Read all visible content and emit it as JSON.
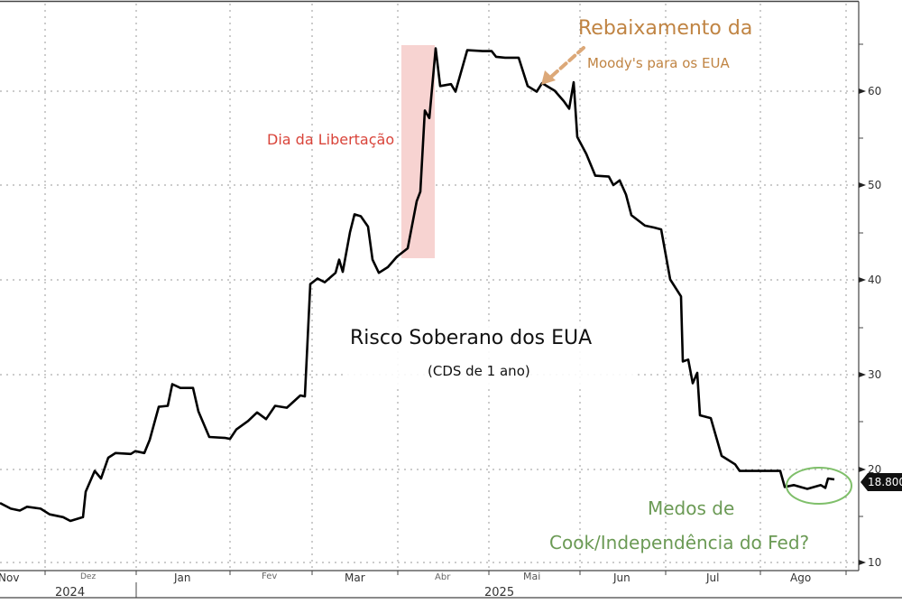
{
  "chart_data": {
    "type": "line",
    "title": "Risco Soberano dos EUA",
    "subtitle": "(CDS de 1 ano)",
    "xlabel": "",
    "ylabel": "",
    "ylim": [
      10,
      66
    ],
    "y_ticks": [
      10,
      20,
      30,
      40,
      50,
      60
    ],
    "grid": true,
    "legend": null,
    "x_month_labels": [
      "Nov",
      "Dez",
      "Jan",
      "Fev",
      "Mar",
      "Abr",
      "Mai",
      "Jun",
      "Jul",
      "Ago"
    ],
    "x_year_labels": [
      "2024",
      "2025"
    ],
    "last_value_label": "18.800",
    "series": [
      {
        "name": "Risco Soberano dos EUA (CDS de 1 ano)",
        "color": "#000000",
        "points": [
          [
            0,
            16.3
          ],
          [
            12,
            15.7
          ],
          [
            22,
            15.5
          ],
          [
            30,
            15.9
          ],
          [
            45,
            15.7
          ],
          [
            55,
            15.1
          ],
          [
            70,
            14.8
          ],
          [
            78,
            14.4
          ],
          [
            92,
            14.8
          ],
          [
            95,
            17.5
          ],
          [
            105,
            19.7
          ],
          [
            112,
            18.9
          ],
          [
            120,
            21.1
          ],
          [
            128,
            21.6
          ],
          [
            145,
            21.5
          ],
          [
            150,
            21.8
          ],
          [
            160,
            21.6
          ],
          [
            166,
            23.0
          ],
          [
            176,
            26.5
          ],
          [
            186,
            26.6
          ],
          [
            191,
            28.9
          ],
          [
            200,
            28.5
          ],
          [
            214,
            28.5
          ],
          [
            220,
            26.0
          ],
          [
            232,
            23.3
          ],
          [
            250,
            23.2
          ],
          [
            255,
            23.1
          ],
          [
            262,
            24.1
          ],
          [
            275,
            25.0
          ],
          [
            285,
            25.9
          ],
          [
            295,
            25.2
          ],
          [
            305,
            26.6
          ],
          [
            318,
            26.4
          ],
          [
            333,
            27.7
          ],
          [
            338,
            27.6
          ],
          [
            344,
            39.5
          ],
          [
            352,
            40.1
          ],
          [
            360,
            39.7
          ],
          [
            372,
            40.7
          ],
          [
            376,
            42.1
          ],
          [
            380,
            40.8
          ],
          [
            388,
            45.0
          ],
          [
            393,
            46.9
          ],
          [
            400,
            46.7
          ],
          [
            408,
            45.6
          ],
          [
            413,
            42.1
          ],
          [
            420,
            40.7
          ],
          [
            430,
            41.3
          ],
          [
            440,
            42.4
          ],
          [
            452,
            43.3
          ],
          [
            462,
            48.3
          ],
          [
            466,
            49.3
          ],
          [
            471,
            57.9
          ],
          [
            476,
            57.1
          ],
          [
            483,
            64.5
          ],
          [
            488,
            60.5
          ],
          [
            500,
            60.7
          ],
          [
            505,
            59.9
          ],
          [
            518,
            64.3
          ],
          [
            535,
            64.2
          ],
          [
            545,
            64.2
          ],
          [
            550,
            63.6
          ],
          [
            560,
            63.5
          ],
          [
            575,
            63.5
          ],
          [
            585,
            60.5
          ],
          [
            595,
            59.9
          ],
          [
            601,
            60.8
          ],
          [
            615,
            60.0
          ],
          [
            625,
            58.9
          ],
          [
            631,
            58.1
          ],
          [
            636,
            60.9
          ],
          [
            640,
            55.1
          ],
          [
            650,
            53.3
          ],
          [
            660,
            51.0
          ],
          [
            675,
            50.9
          ],
          [
            680,
            50.0
          ],
          [
            687,
            50.5
          ],
          [
            694,
            49.0
          ],
          [
            700,
            46.8
          ],
          [
            715,
            45.7
          ],
          [
            725,
            45.5
          ],
          [
            733,
            45.3
          ],
          [
            743,
            40.0
          ],
          [
            755,
            38.2
          ],
          [
            757,
            31.3
          ],
          [
            763,
            31.5
          ],
          [
            768,
            29.0
          ],
          [
            773,
            30.1
          ],
          [
            776,
            25.6
          ],
          [
            788,
            25.3
          ],
          [
            800,
            21.3
          ],
          [
            815,
            20.4
          ],
          [
            820,
            19.7
          ],
          [
            865,
            19.7
          ],
          [
            870,
            18.0
          ],
          [
            880,
            18.2
          ],
          [
            895,
            17.8
          ],
          [
            910,
            18.2
          ],
          [
            915,
            17.9
          ],
          [
            918,
            18.9
          ],
          [
            925,
            18.8
          ]
        ]
      }
    ],
    "annotations": [
      {
        "text": "Dia da Libertação",
        "color": "#d9443a",
        "highlight_period": "início de Abr 2025 (faixa rosa)"
      },
      {
        "text": "Rebaixamento da Moody's para os EUA",
        "color": "#c08443",
        "points_to": "meados de Mai 2025"
      },
      {
        "text": "Medos de Cook/Independência do Fed?",
        "color": "#6b9a55",
        "circled_region": "final de Ago 2025"
      }
    ]
  },
  "labels": {
    "title": "Risco Soberano dos EUA",
    "subtitle": "(CDS de 1 ano)",
    "liberation": "Dia da Libertação",
    "moodys_line1": "Rebaixamento da",
    "moodys_line2": "Moody's para os EUA",
    "fed_line1": "Medos de",
    "fed_line2": "Cook/Independência do Fed?",
    "last_value": "18.800",
    "months": [
      "Nov",
      "Dez",
      "Jan",
      "Fev",
      "Mar",
      "Abr",
      "Mai",
      "Jun",
      "Jul",
      "Ago"
    ],
    "years": [
      "2024",
      "2025"
    ],
    "y_ticks": [
      "60",
      "50",
      "40",
      "30",
      "20",
      "10"
    ]
  },
  "colors": {
    "line": "#000000",
    "highlight": "#f7d3d1",
    "red_annotation": "#d9443a",
    "orange_annotation": "#c08443",
    "green_annotation": "#6b9a55"
  }
}
